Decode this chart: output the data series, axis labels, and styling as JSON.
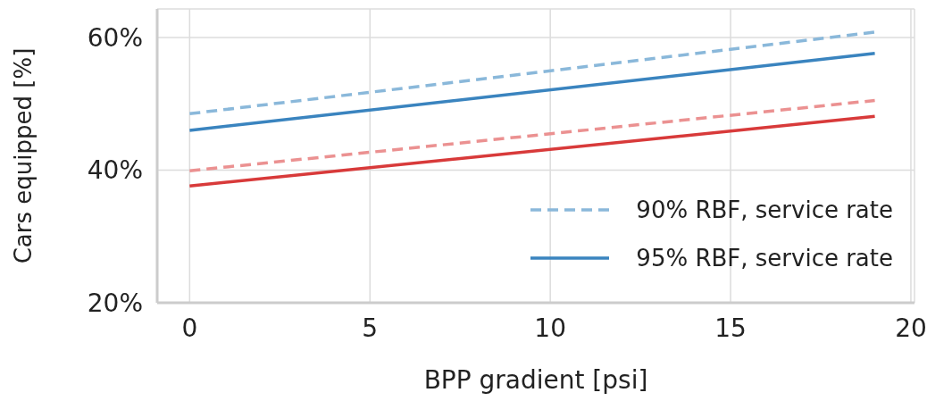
{
  "chart_data": {
    "type": "line",
    "xlabel": "BPP gradient [psi]",
    "ylabel": "Cars equipped [%]",
    "xlim": [
      -0.9,
      20.1
    ],
    "xticks": [
      0,
      5,
      10,
      15,
      20
    ],
    "ylim": [
      20,
      64.3
    ],
    "yticks": [
      {
        "value": 20,
        "label": "20%"
      },
      {
        "value": 40,
        "label": "40%"
      },
      {
        "value": 60,
        "label": "60%"
      }
    ],
    "grid": true,
    "legend": "bottom right",
    "marker": "none",
    "x": [
      0,
      19
    ],
    "series": [
      {
        "name": "90% RBF, service rate",
        "color": "#8ab8da",
        "line_style": "dashed",
        "values": [
          48.5,
          60.8
        ]
      },
      {
        "name": "95% RBF, service rate",
        "color": "#3a84bf",
        "line_style": "solid",
        "values": [
          46.0,
          57.6
        ]
      },
      {
        "color": "#eb9191",
        "line_style": "dashed",
        "values": [
          39.9,
          50.5
        ]
      },
      {
        "color": "#d83a3a",
        "line_style": "solid",
        "values": [
          37.6,
          48.1
        ]
      }
    ]
  }
}
